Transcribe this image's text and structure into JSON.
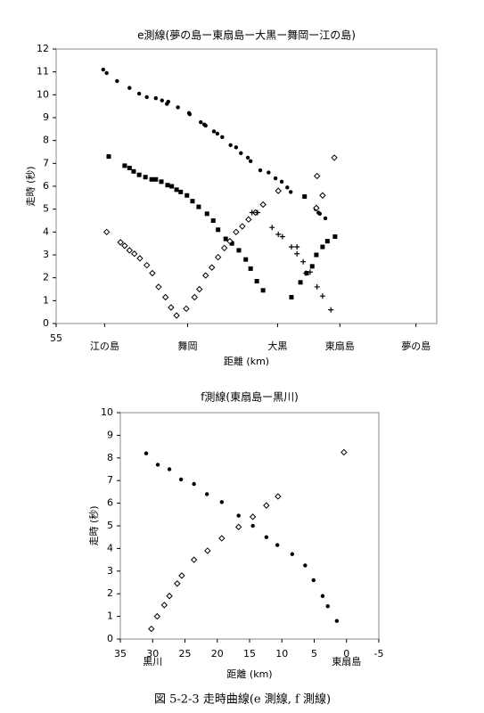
{
  "chart_data": [
    {
      "type": "scatter",
      "title": "e測線(夢の島ー東扇島ー大黒ー舞岡ー江の島)",
      "x_label": "距離 (km)",
      "y_label": "走時 (秒)",
      "xlim": [
        55,
        0
      ],
      "ylim": [
        0,
        12
      ],
      "xticks": [
        55,
        {
          "value": 48,
          "label": "江の島"
        },
        {
          "value": 36,
          "label": "舞岡"
        },
        {
          "value": 23,
          "label": "大黒"
        },
        {
          "value": 14,
          "label": "東扇島"
        },
        {
          "value": 3,
          "label": "夢の島"
        }
      ],
      "yticks": [
        0,
        1,
        2,
        3,
        4,
        5,
        6,
        7,
        8,
        9,
        10,
        11,
        12
      ],
      "series": [
        {
          "marker": "circle",
          "color": "#000000",
          "x": [
            48.2,
            47.7,
            46.2,
            44.4,
            43.0,
            41.9,
            40.6,
            39.7,
            39.0,
            38.8,
            37.4,
            35.8,
            35.7,
            34.1,
            33.6,
            33.4,
            32.2,
            31.7,
            31.0,
            29.8,
            29.0,
            28.3,
            27.3,
            26.9,
            25.5,
            24.3,
            23.3,
            22.4,
            21.6,
            21.1,
            17.5,
            17.1,
            16.9,
            16.1
          ],
          "values": [
            11.1,
            10.95,
            10.6,
            10.3,
            10.05,
            9.9,
            9.85,
            9.75,
            9.6,
            9.7,
            9.45,
            9.2,
            9.15,
            8.8,
            8.7,
            8.65,
            8.4,
            8.3,
            8.15,
            7.8,
            7.7,
            7.45,
            7.25,
            7.1,
            6.7,
            6.6,
            6.35,
            6.2,
            5.95,
            5.75,
            5.0,
            4.85,
            4.8,
            4.6
          ]
        },
        {
          "marker": "square",
          "color": "#000000",
          "x": [
            47.4,
            45.1,
            44.4,
            43.8,
            43.0,
            42.1,
            41.2,
            40.6,
            39.8,
            38.9,
            38.3,
            37.6,
            37.0,
            36.1,
            35.3,
            34.4,
            33.2,
            32.3,
            31.6,
            30.5,
            29.6,
            28.6,
            27.6,
            26.9,
            26.0,
            25.1,
            21.0,
            19.7,
            18.8,
            18.0,
            17.4,
            16.5,
            15.8,
            14.7,
            19.1
          ],
          "values": [
            7.3,
            6.9,
            6.8,
            6.65,
            6.5,
            6.4,
            6.3,
            6.3,
            6.2,
            6.05,
            6.0,
            5.85,
            5.75,
            5.6,
            5.35,
            5.1,
            4.8,
            4.5,
            4.1,
            3.7,
            3.5,
            3.2,
            2.8,
            2.4,
            1.85,
            1.45,
            1.15,
            1.8,
            2.2,
            2.5,
            3.0,
            3.35,
            3.6,
            3.8,
            5.55
          ]
        },
        {
          "marker": "diamond",
          "color": "#000000",
          "x": [
            47.7,
            45.7,
            45.1,
            44.4,
            43.7,
            42.9,
            41.9,
            41.1,
            40.2,
            39.2,
            38.4,
            37.6,
            36.2,
            35.0,
            34.3,
            33.4,
            32.5,
            31.6,
            30.7,
            29.9,
            29.0,
            28.1,
            27.2,
            26.2,
            25.1,
            22.9,
            17.3,
            16.5,
            14.8,
            17.4
          ],
          "values": [
            4.0,
            3.55,
            3.4,
            3.2,
            3.05,
            2.85,
            2.55,
            2.2,
            1.6,
            1.15,
            0.7,
            0.35,
            0.65,
            1.15,
            1.5,
            2.1,
            2.45,
            2.9,
            3.3,
            3.6,
            4.0,
            4.25,
            4.55,
            4.85,
            5.2,
            5.8,
            6.45,
            5.6,
            7.25,
            5.05
          ]
        },
        {
          "marker": "plus",
          "color": "#000000",
          "x": [
            26.7,
            25.9,
            23.8,
            22.9,
            22.3,
            21.0,
            20.2,
            20.2,
            19.3,
            18.9,
            18.3,
            17.3,
            16.5,
            15.3
          ],
          "values": [
            4.85,
            4.85,
            4.2,
            3.9,
            3.8,
            3.35,
            3.35,
            3.05,
            2.7,
            2.2,
            2.25,
            1.6,
            1.2,
            0.6
          ]
        }
      ]
    },
    {
      "type": "scatter",
      "title": "f測線(東扇島ー黒川)",
      "x_label": "距離 (km)",
      "y_label": "走時 (秒)",
      "xlim": [
        35,
        -5
      ],
      "ylim": [
        0,
        10
      ],
      "xticks": [
        35,
        30,
        25,
        20,
        15,
        10,
        5,
        0,
        -5
      ],
      "yticks": [
        0,
        1,
        2,
        3,
        4,
        5,
        6,
        7,
        8,
        9,
        10
      ],
      "annotations": [
        {
          "text": "黒川",
          "x": 30
        },
        {
          "text": "東扇島",
          "x": 0
        }
      ],
      "series": [
        {
          "marker": "circle",
          "color": "#000000",
          "x": [
            31.0,
            29.2,
            27.4,
            25.6,
            23.6,
            21.6,
            19.3,
            16.7,
            14.5,
            12.4,
            10.7,
            8.4,
            6.4,
            5.1,
            3.7,
            2.9,
            1.5
          ],
          "values": [
            8.2,
            7.7,
            7.5,
            7.05,
            6.85,
            6.4,
            6.05,
            5.45,
            5.0,
            4.5,
            4.15,
            3.75,
            3.25,
            2.6,
            1.9,
            1.45,
            0.8
          ]
        },
        {
          "marker": "diamond",
          "color": "#000000",
          "x": [
            30.2,
            29.3,
            28.2,
            27.4,
            26.2,
            25.5,
            23.6,
            21.5,
            19.3,
            16.7,
            14.5,
            12.4,
            10.6,
            0.4
          ],
          "values": [
            0.45,
            1.0,
            1.5,
            1.9,
            2.45,
            2.8,
            3.5,
            3.9,
            4.45,
            4.95,
            5.4,
            5.9,
            6.3,
            8.25
          ]
        }
      ]
    }
  ],
  "caption": "図 5-2-3 走時曲線(e 測線, f 測線)"
}
